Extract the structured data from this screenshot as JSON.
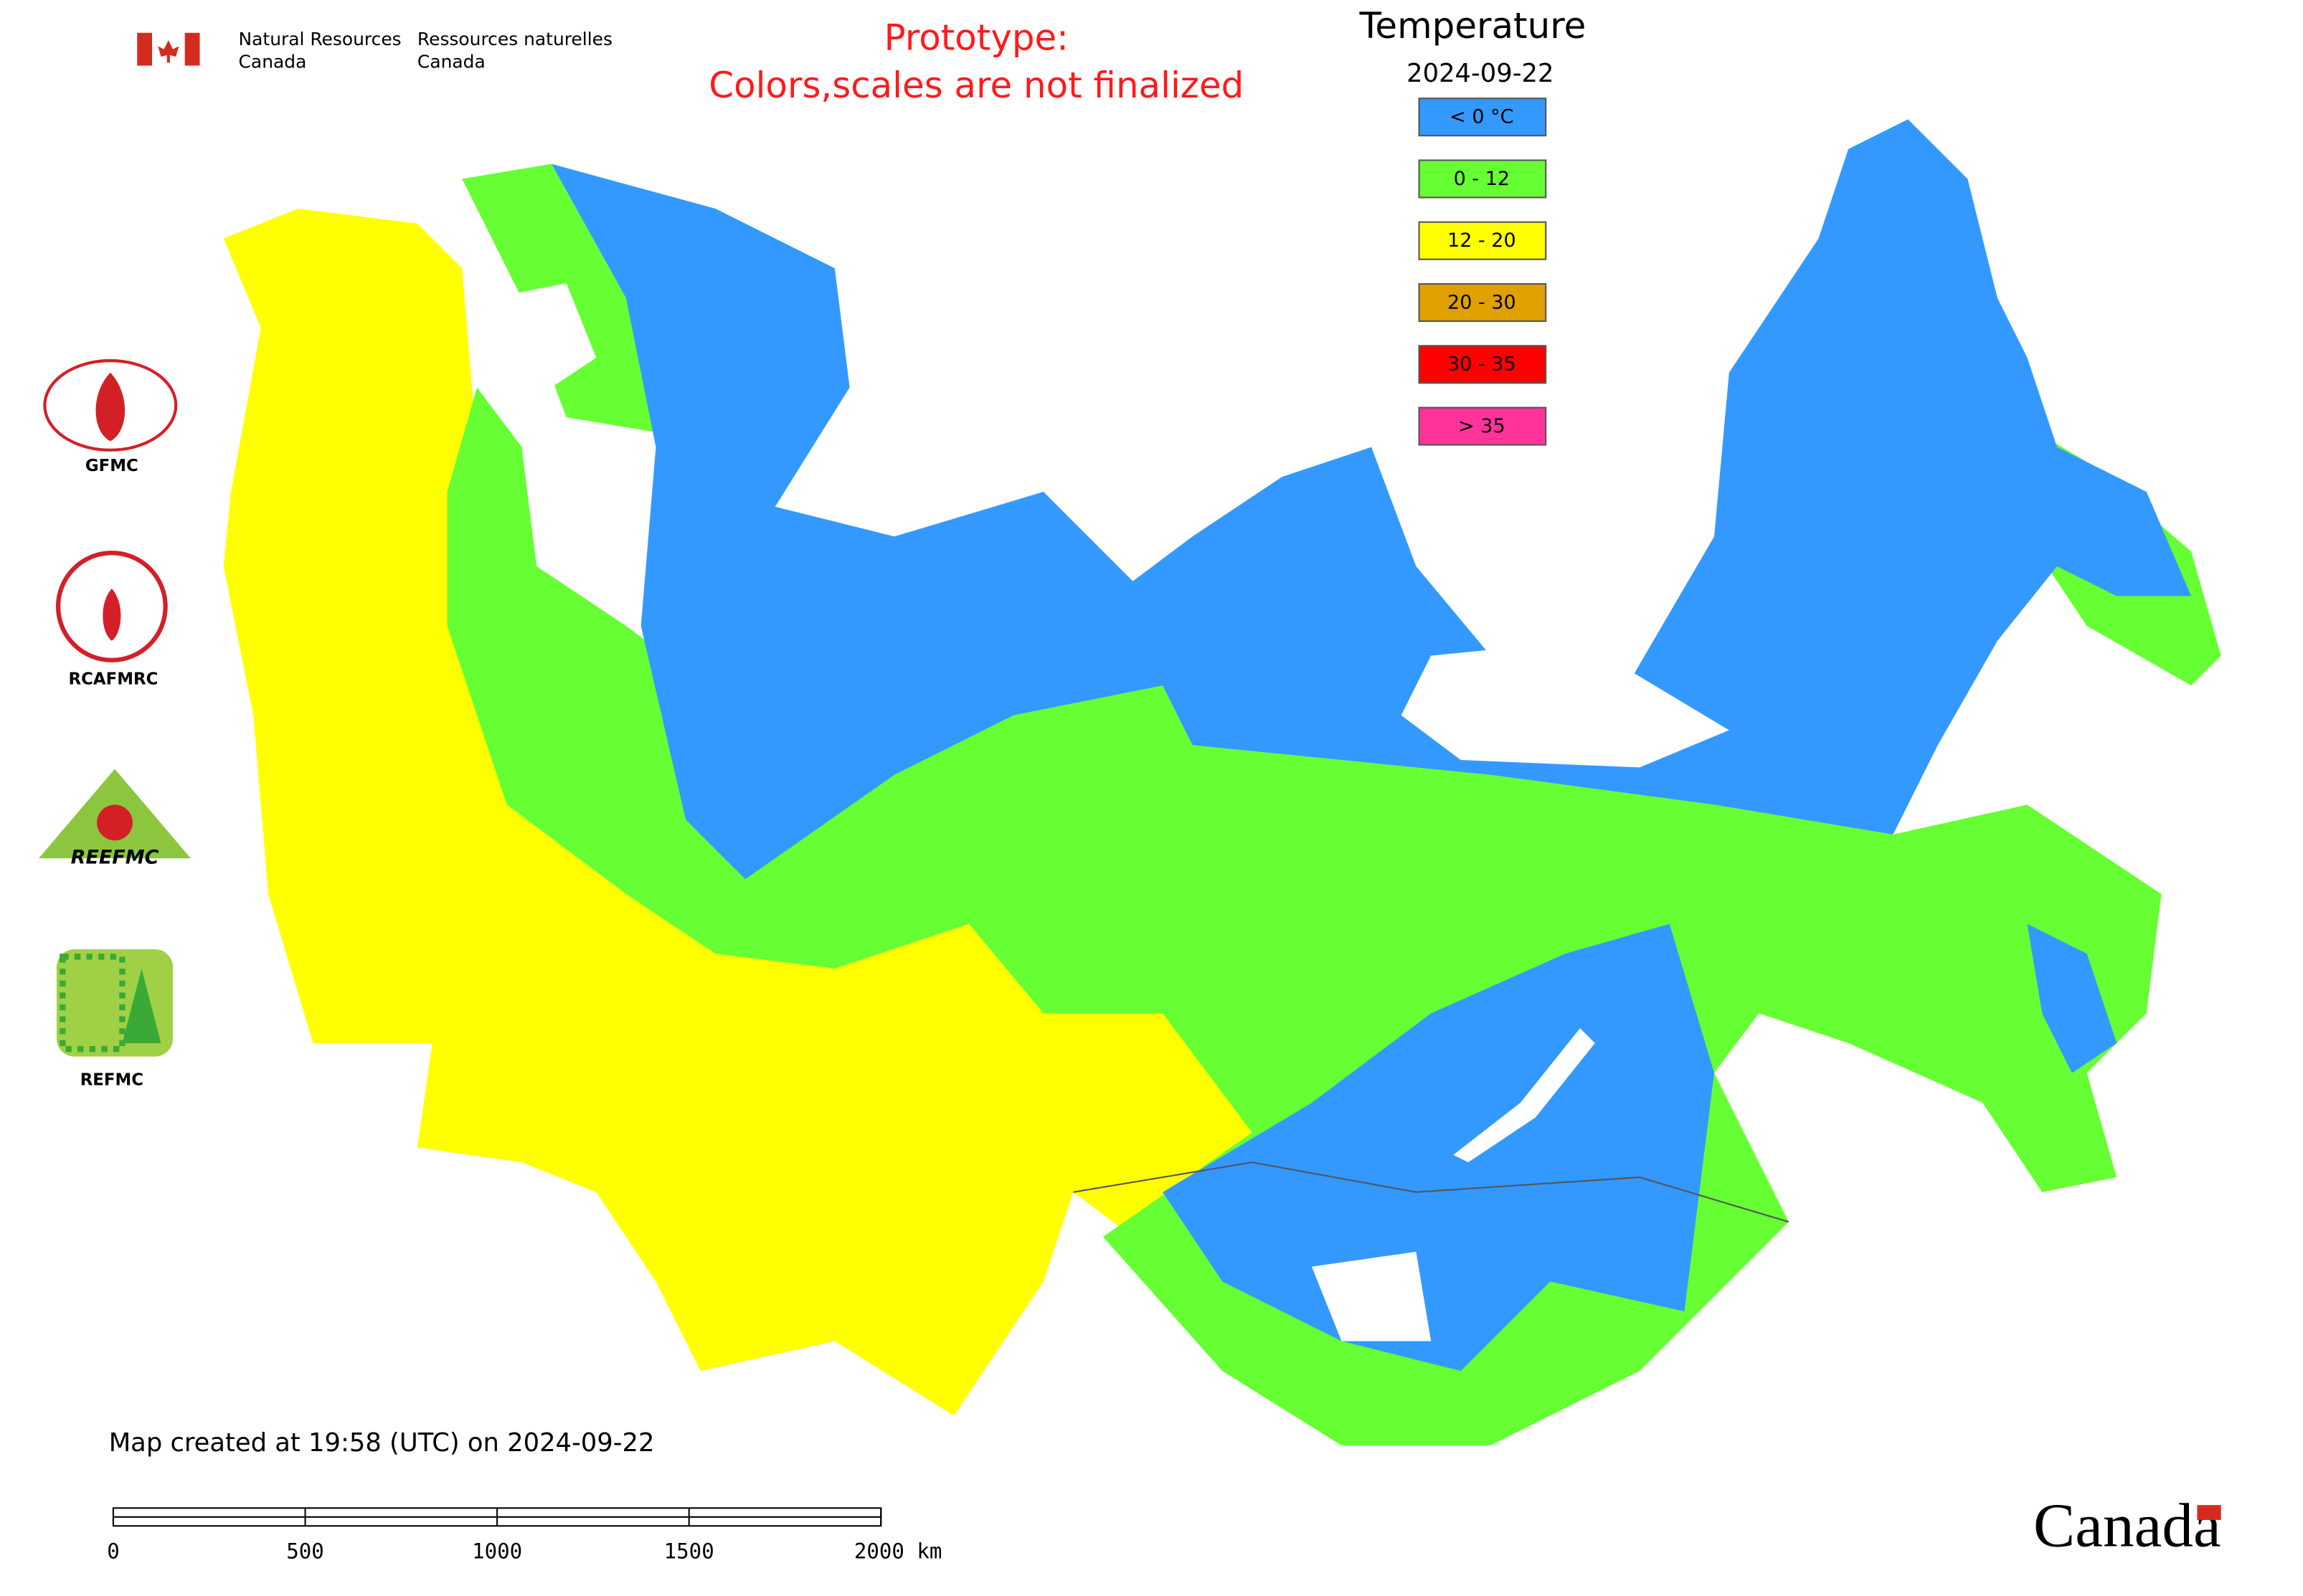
{
  "header": {
    "department_en": [
      "Natural Resources",
      "Canada"
    ],
    "department_fr": [
      "Ressources naturelles",
      "Canada"
    ]
  },
  "notice": [
    "Prototype:",
    "Colors,scales are not finalized"
  ],
  "legend": {
    "title": "Temperature",
    "date": "2024-09-22",
    "items": [
      {
        "label": "< 0 °C",
        "color": "#3399ff"
      },
      {
        "label": "0 - 12",
        "color": "#66ff33"
      },
      {
        "label": "12 - 20",
        "color": "#ffff00"
      },
      {
        "label": "20 - 30",
        "color": "#e0a000"
      },
      {
        "label": "30 - 35",
        "color": "#ff0000"
      },
      {
        "label": "> 35",
        "color": "#ff3399"
      }
    ]
  },
  "logos": [
    "GFMC",
    "RCAFMRC",
    "REEFMC",
    "REFMC"
  ],
  "footer": {
    "created": "Map created at 19:58 (UTC) on 2024-09-22",
    "scale_labels": [
      "0",
      "500",
      "1000",
      "1500",
      "2000 km"
    ],
    "wordmark": "Canada"
  }
}
